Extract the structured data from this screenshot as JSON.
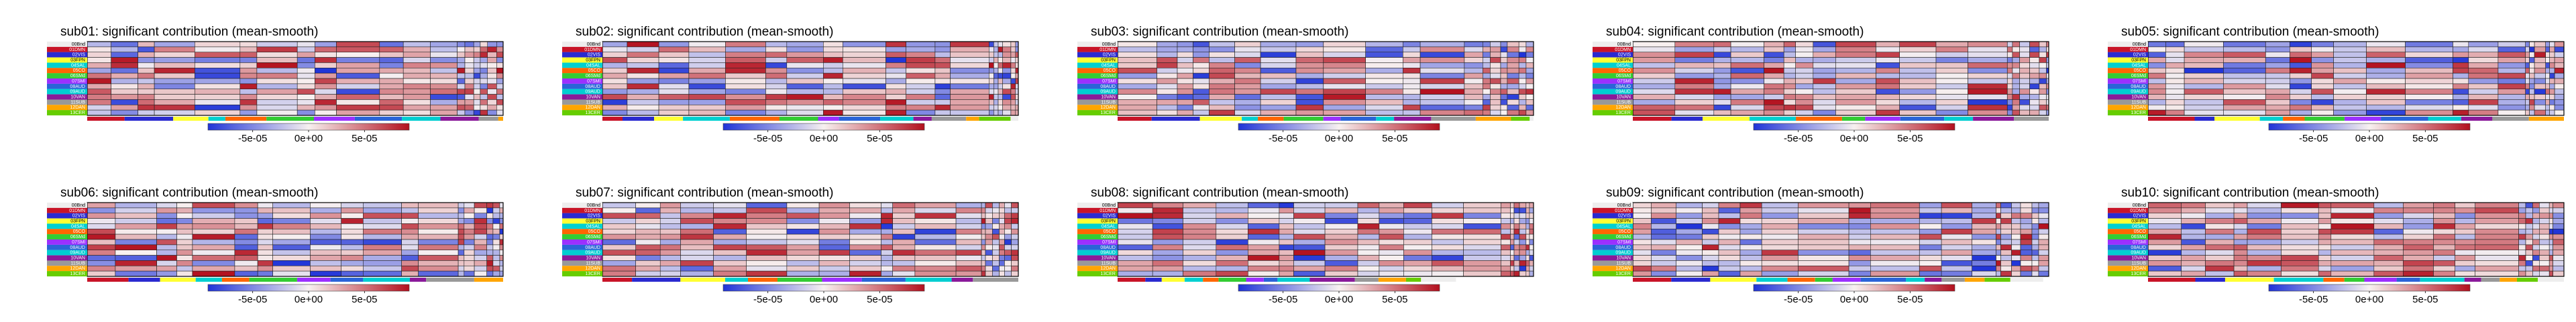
{
  "colors": {
    "neg": "#2034d8",
    "zero": "#f7f0f0",
    "pos": "#b3101e",
    "network_palette": [
      "#eeeeee",
      "#c81428",
      "#2a2ad0",
      "#ffff33",
      "#00d0d0",
      "#ff6600",
      "#33cc33",
      "#9b30ff",
      "#2a64d8",
      "#00ced1",
      "#8a1a9a",
      "#999999",
      "#ffa500",
      "#66cd00"
    ]
  },
  "row_labels": [
    "00Bnd",
    "01DMN",
    "02VIS",
    "03FPN",
    "04SAL",
    "05CO",
    "06SMd",
    "07SMl",
    "08AUD",
    "09AUD",
    "10VAN",
    "11SUB",
    "12DAN",
    "13CER"
  ],
  "colorbar": {
    "ticks": [
      "-5e-05",
      "0e+00",
      "5e-05"
    ],
    "tick_values": [
      -5e-05,
      0,
      5e-05
    ],
    "range": [
      -9e-05,
      9e-05
    ]
  },
  "chart_data": [
    {
      "type": "heatmap",
      "title": "sub01: significant contribution (mean-smooth)",
      "seed": 11
    },
    {
      "type": "heatmap",
      "title": "sub02: significant contribution (mean-smooth)",
      "seed": 23
    },
    {
      "type": "heatmap",
      "title": "sub03: significant contribution (mean-smooth)",
      "seed": 37
    },
    {
      "type": "heatmap",
      "title": "sub04: significant contribution (mean-smooth)",
      "seed": 41
    },
    {
      "type": "heatmap",
      "title": "sub05: significant contribution (mean-smooth)",
      "seed": 53
    },
    {
      "type": "heatmap",
      "title": "sub06: significant contribution (mean-smooth)",
      "seed": 67
    },
    {
      "type": "heatmap",
      "title": "sub07: significant contribution (mean-smooth)",
      "seed": 71
    },
    {
      "type": "heatmap",
      "title": "sub08: significant contribution (mean-smooth)",
      "seed": 83
    },
    {
      "type": "heatmap",
      "title": "sub09: significant contribution (mean-smooth)",
      "seed": 97
    },
    {
      "type": "heatmap",
      "title": "sub10: significant contribution (mean-smooth)",
      "seed": 103
    }
  ]
}
